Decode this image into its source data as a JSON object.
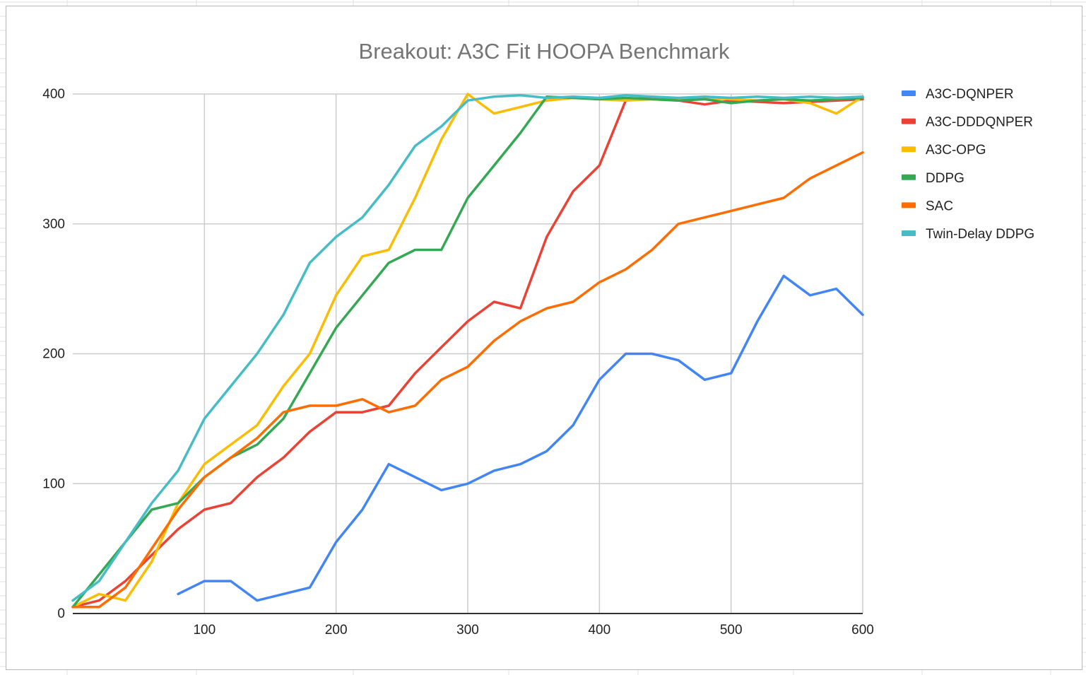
{
  "chart_data": {
    "type": "line",
    "title": "Breakout: A3C Fit HOOPA Benchmark",
    "xlabel": "",
    "ylabel": "",
    "xlim": [
      0,
      600
    ],
    "ylim": [
      0,
      400
    ],
    "x_ticks": [
      "100",
      "200",
      "300",
      "400",
      "500",
      "600"
    ],
    "y_ticks": [
      "0",
      "100",
      "200",
      "300",
      "400"
    ],
    "grid": true,
    "legend_position": "right",
    "x": [
      0,
      20,
      40,
      60,
      80,
      100,
      120,
      140,
      160,
      180,
      200,
      220,
      240,
      260,
      280,
      300,
      320,
      340,
      360,
      380,
      400,
      420,
      440,
      460,
      480,
      500,
      520,
      540,
      560,
      580,
      600
    ],
    "series": [
      {
        "name": "A3C-DQNPER",
        "color": "#4285f4",
        "values": [
          null,
          null,
          null,
          null,
          15,
          25,
          25,
          10,
          15,
          20,
          55,
          80,
          115,
          105,
          95,
          100,
          110,
          115,
          125,
          145,
          180,
          200,
          200,
          195,
          180,
          185,
          225,
          260,
          245,
          250,
          230
        ]
      },
      {
        "name": "A3C-DDDQNPER",
        "color": "#ea4335",
        "values": [
          5,
          10,
          25,
          45,
          65,
          80,
          85,
          105,
          120,
          140,
          155,
          155,
          160,
          185,
          205,
          225,
          240,
          235,
          290,
          325,
          345,
          395,
          398,
          395,
          392,
          395,
          394,
          393,
          394,
          395,
          396
        ]
      },
      {
        "name": "A3C-OPG",
        "color": "#fbbc04",
        "values": [
          5,
          15,
          10,
          40,
          85,
          115,
          130,
          145,
          175,
          200,
          245,
          275,
          280,
          320,
          365,
          400,
          385,
          390,
          395,
          397,
          396,
          395,
          396,
          395,
          397,
          396,
          395,
          396,
          393,
          385,
          398
        ]
      },
      {
        "name": "DDPG",
        "color": "#34a853",
        "values": [
          5,
          30,
          55,
          80,
          85,
          105,
          120,
          130,
          150,
          185,
          220,
          245,
          270,
          280,
          280,
          320,
          345,
          370,
          398,
          397,
          396,
          397,
          396,
          395,
          396,
          393,
          395,
          396,
          395,
          396,
          397
        ]
      },
      {
        "name": "SAC",
        "color": "#ff6d01",
        "values": [
          5,
          5,
          20,
          50,
          80,
          105,
          120,
          135,
          155,
          160,
          160,
          165,
          155,
          160,
          180,
          190,
          210,
          225,
          235,
          240,
          255,
          265,
          280,
          300,
          305,
          310,
          315,
          320,
          335,
          345,
          355
        ]
      },
      {
        "name": "Twin-Delay DDPG",
        "color": "#46bdc6",
        "values": [
          10,
          25,
          55,
          85,
          110,
          150,
          175,
          200,
          230,
          270,
          290,
          305,
          330,
          360,
          375,
          395,
          398,
          399,
          397,
          398,
          397,
          399,
          398,
          397,
          398,
          397,
          398,
          397,
          398,
          397,
          398
        ]
      }
    ]
  }
}
